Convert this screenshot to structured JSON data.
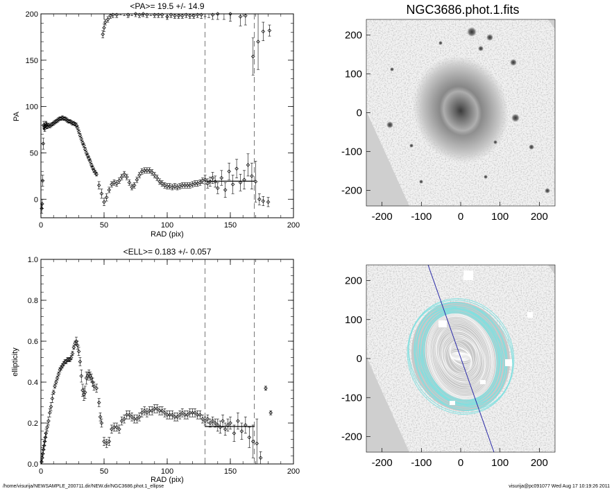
{
  "footer": {
    "path": "/home/visurija/NEWSAMPLE_200711.dir/NEW.dir/NGC3686.phot.1_ellipse",
    "stamp": "visurija@pc091077  Wed Aug 17 10:19:26 2011"
  },
  "chart_data": [
    {
      "id": "pa",
      "type": "scatter",
      "title": "<PA>=  19.5 +/-  14.9",
      "xlabel": "RAD (pix)",
      "ylabel": "PA",
      "xlim": [
        0,
        200
      ],
      "ylim": [
        -20,
        200
      ],
      "xticks": [
        0,
        50,
        100,
        150,
        200
      ],
      "yticks": [
        0,
        50,
        100,
        150,
        200
      ],
      "grid": false,
      "vlines": [
        130,
        169
      ],
      "mean_line": {
        "x": [
          130,
          169
        ],
        "y": 19.5
      },
      "points": [
        [
          0.6,
          -10,
          5
        ],
        [
          1.0,
          -5,
          5
        ],
        [
          1.4,
          20,
          6
        ],
        [
          1.8,
          60,
          6
        ],
        [
          2.2,
          80,
          4
        ],
        [
          2.6,
          78,
          3
        ],
        [
          3.0,
          76,
          3
        ],
        [
          3.5,
          79,
          2
        ],
        [
          4.0,
          82,
          2
        ],
        [
          4.5,
          80,
          2
        ],
        [
          5,
          78,
          2
        ],
        [
          6,
          80,
          2
        ],
        [
          7,
          79,
          2
        ],
        [
          8,
          80,
          2
        ],
        [
          9,
          81,
          2
        ],
        [
          10,
          82,
          2
        ],
        [
          11,
          83,
          2
        ],
        [
          12,
          84,
          2
        ],
        [
          13,
          85,
          2
        ],
        [
          14,
          86,
          2
        ],
        [
          15,
          87,
          2
        ],
        [
          16,
          87,
          2
        ],
        [
          17,
          88,
          2
        ],
        [
          18,
          87,
          2
        ],
        [
          19,
          87,
          2
        ],
        [
          20,
          86,
          2
        ],
        [
          21,
          85,
          2
        ],
        [
          22,
          84,
          2
        ],
        [
          23,
          84,
          2
        ],
        [
          24,
          83,
          2
        ],
        [
          25,
          82,
          2
        ],
        [
          26,
          82,
          2
        ],
        [
          27,
          81,
          2
        ],
        [
          28,
          80,
          2
        ],
        [
          29,
          77,
          2
        ],
        [
          30,
          73,
          2
        ],
        [
          31,
          69,
          2
        ],
        [
          32,
          65,
          2
        ],
        [
          33,
          61,
          2
        ],
        [
          34,
          58,
          2
        ],
        [
          35,
          54,
          2
        ],
        [
          36,
          50,
          2
        ],
        [
          37,
          47,
          2
        ],
        [
          38,
          44,
          2
        ],
        [
          39,
          41,
          2
        ],
        [
          40,
          37,
          2
        ],
        [
          41,
          34,
          2
        ],
        [
          42,
          31,
          2
        ],
        [
          43,
          29,
          2
        ],
        [
          44,
          27,
          2
        ],
        [
          46,
          15,
          4
        ],
        [
          48,
          6,
          5
        ],
        [
          50,
          -3,
          4
        ],
        [
          52,
          2,
          4
        ],
        [
          54,
          10,
          3
        ],
        [
          56,
          16,
          3
        ],
        [
          58,
          18,
          3
        ],
        [
          60,
          17,
          3
        ],
        [
          62,
          20,
          3
        ],
        [
          64,
          24,
          3
        ],
        [
          66,
          27,
          3
        ],
        [
          68,
          24,
          3
        ],
        [
          70,
          18,
          3
        ],
        [
          72,
          13,
          3
        ],
        [
          74,
          15,
          3
        ],
        [
          76,
          21,
          3
        ],
        [
          78,
          26,
          3
        ],
        [
          80,
          30,
          3
        ],
        [
          82,
          31,
          3
        ],
        [
          84,
          31,
          3
        ],
        [
          86,
          31,
          3
        ],
        [
          88,
          29,
          3
        ],
        [
          90,
          26,
          3
        ],
        [
          92,
          23,
          3
        ],
        [
          94,
          19,
          3
        ],
        [
          96,
          17,
          3
        ],
        [
          98,
          15,
          3
        ],
        [
          100,
          14,
          3
        ],
        [
          102,
          14,
          3
        ],
        [
          104,
          13,
          3
        ],
        [
          106,
          14,
          3
        ],
        [
          108,
          13,
          3
        ],
        [
          110,
          14,
          3
        ],
        [
          112,
          15,
          3
        ],
        [
          114,
          15,
          3
        ],
        [
          116,
          15,
          3
        ],
        [
          118,
          15,
          3
        ],
        [
          120,
          16,
          3
        ],
        [
          122,
          17,
          3
        ],
        [
          124,
          17,
          3
        ],
        [
          126,
          18,
          3
        ],
        [
          128,
          20,
          3
        ],
        [
          130,
          21,
          5
        ],
        [
          132,
          17,
          5
        ],
        [
          134,
          19,
          5
        ],
        [
          136,
          23,
          6
        ],
        [
          138,
          19,
          6
        ],
        [
          140,
          12,
          6
        ],
        [
          143,
          23,
          8
        ],
        [
          146,
          10,
          8
        ],
        [
          149,
          30,
          9
        ],
        [
          152,
          16,
          10
        ],
        [
          155,
          33,
          10
        ],
        [
          158,
          18,
          9
        ],
        [
          161,
          21,
          10
        ],
        [
          164,
          37,
          12
        ],
        [
          167,
          25,
          14
        ],
        [
          170,
          19,
          22
        ],
        [
          173,
          0,
          6
        ],
        [
          176,
          -2,
          5
        ],
        [
          180,
          -3,
          5
        ],
        [
          49,
          178,
          4
        ],
        [
          50,
          185,
          4
        ],
        [
          51,
          191,
          3
        ],
        [
          53,
          194,
          3
        ],
        [
          55,
          198,
          3
        ],
        [
          57,
          199,
          3
        ],
        [
          60,
          199,
          3
        ],
        [
          63,
          202,
          3
        ],
        [
          66,
          201,
          3
        ],
        [
          69,
          199,
          3
        ],
        [
          72,
          201,
          3
        ],
        [
          75,
          200,
          3
        ],
        [
          78,
          199,
          3
        ],
        [
          81,
          200,
          3
        ],
        [
          84,
          199,
          3
        ],
        [
          87,
          201,
          3
        ],
        [
          90,
          199,
          3
        ],
        [
          93,
          199,
          3
        ],
        [
          96,
          199,
          3
        ],
        [
          100,
          197,
          3
        ],
        [
          103,
          199,
          3
        ],
        [
          106,
          198,
          3
        ],
        [
          109,
          198,
          3
        ],
        [
          112,
          198,
          3
        ],
        [
          115,
          199,
          3
        ],
        [
          118,
          198,
          3
        ],
        [
          121,
          198,
          3
        ],
        [
          124,
          199,
          3
        ],
        [
          127,
          199,
          4
        ],
        [
          130,
          201,
          4
        ],
        [
          133,
          201,
          5
        ],
        [
          136,
          199,
          5
        ],
        [
          140,
          200,
          6
        ],
        [
          145,
          201,
          7
        ],
        [
          150,
          200,
          8
        ],
        [
          158,
          197,
          10
        ],
        [
          162,
          198,
          10
        ],
        [
          168,
          154,
          20
        ],
        [
          172,
          170,
          30
        ],
        [
          176,
          181,
          10
        ],
        [
          181,
          182,
          6
        ]
      ]
    },
    {
      "id": "ell",
      "type": "scatter",
      "title": "<ELL>= 0.183 +/-  0.057",
      "xlabel": "RAD (pix)",
      "ylabel": "ellipticity",
      "xlim": [
        0,
        200
      ],
      "ylim": [
        0,
        1
      ],
      "xticks": [
        0,
        50,
        100,
        150,
        200
      ],
      "yticks": [
        0,
        0.2,
        0.4,
        0.6,
        0.8,
        1.0
      ],
      "ytick_labels": [
        "0.0",
        "0.2",
        "0.4",
        "0.6",
        "0.8",
        "1.0"
      ],
      "grid": false,
      "vlines": [
        130,
        169
      ],
      "mean_line": {
        "x": [
          130,
          169
        ],
        "y": 0.183
      },
      "points": [
        [
          0.5,
          0.01,
          0.01
        ],
        [
          1.0,
          0.03,
          0.02
        ],
        [
          1.5,
          0.05,
          0.02
        ],
        [
          2.0,
          0.07,
          0.02
        ],
        [
          2.5,
          0.09,
          0.02
        ],
        [
          3.0,
          0.11,
          0.02
        ],
        [
          3.5,
          0.13,
          0.02
        ],
        [
          4,
          0.15,
          0.02
        ],
        [
          5,
          0.18,
          0.02
        ],
        [
          6,
          0.21,
          0.02
        ],
        [
          7,
          0.25,
          0.02
        ],
        [
          8,
          0.28,
          0.02
        ],
        [
          9,
          0.32,
          0.02
        ],
        [
          10,
          0.35,
          0.01
        ],
        [
          11,
          0.38,
          0.01
        ],
        [
          12,
          0.4,
          0.01
        ],
        [
          13,
          0.42,
          0.01
        ],
        [
          14,
          0.44,
          0.01
        ],
        [
          15,
          0.46,
          0.01
        ],
        [
          16,
          0.47,
          0.01
        ],
        [
          17,
          0.48,
          0.01
        ],
        [
          18,
          0.49,
          0.01
        ],
        [
          19,
          0.5,
          0.01
        ],
        [
          20,
          0.5,
          0.01
        ],
        [
          21,
          0.51,
          0.01
        ],
        [
          22,
          0.51,
          0.01
        ],
        [
          23,
          0.51,
          0.01
        ],
        [
          24,
          0.52,
          0.01
        ],
        [
          25,
          0.54,
          0.01
        ],
        [
          26,
          0.57,
          0.01
        ],
        [
          27,
          0.59,
          0.01
        ],
        [
          28,
          0.6,
          0.02
        ],
        [
          29,
          0.58,
          0.02
        ],
        [
          30,
          0.55,
          0.02
        ],
        [
          31,
          0.5,
          0.02
        ],
        [
          32,
          0.43,
          0.03
        ],
        [
          33,
          0.36,
          0.03
        ],
        [
          34,
          0.34,
          0.03
        ],
        [
          35,
          0.35,
          0.03
        ],
        [
          36,
          0.42,
          0.03
        ],
        [
          37,
          0.43,
          0.02
        ],
        [
          38,
          0.44,
          0.02
        ],
        [
          39,
          0.43,
          0.02
        ],
        [
          40,
          0.42,
          0.02
        ],
        [
          41,
          0.4,
          0.02
        ],
        [
          42,
          0.38,
          0.02
        ],
        [
          44,
          0.37,
          0.02
        ],
        [
          46,
          0.3,
          0.02
        ],
        [
          47,
          0.23,
          0.02
        ],
        [
          48,
          0.2,
          0.02
        ],
        [
          50,
          0.11,
          0.02
        ],
        [
          52,
          0.1,
          0.02
        ],
        [
          54,
          0.11,
          0.02
        ],
        [
          56,
          0.17,
          0.02
        ],
        [
          58,
          0.18,
          0.02
        ],
        [
          60,
          0.18,
          0.02
        ],
        [
          62,
          0.17,
          0.02
        ],
        [
          64,
          0.21,
          0.02
        ],
        [
          66,
          0.22,
          0.02
        ],
        [
          68,
          0.24,
          0.02
        ],
        [
          70,
          0.24,
          0.02
        ],
        [
          72,
          0.23,
          0.02
        ],
        [
          74,
          0.22,
          0.02
        ],
        [
          76,
          0.22,
          0.02
        ],
        [
          78,
          0.23,
          0.02
        ],
        [
          80,
          0.25,
          0.02
        ],
        [
          82,
          0.26,
          0.02
        ],
        [
          84,
          0.25,
          0.02
        ],
        [
          86,
          0.26,
          0.02
        ],
        [
          88,
          0.26,
          0.02
        ],
        [
          90,
          0.27,
          0.02
        ],
        [
          92,
          0.27,
          0.02
        ],
        [
          94,
          0.26,
          0.02
        ],
        [
          96,
          0.26,
          0.02
        ],
        [
          98,
          0.25,
          0.02
        ],
        [
          100,
          0.24,
          0.02
        ],
        [
          102,
          0.24,
          0.02
        ],
        [
          104,
          0.24,
          0.02
        ],
        [
          106,
          0.23,
          0.02
        ],
        [
          108,
          0.23,
          0.02
        ],
        [
          110,
          0.24,
          0.02
        ],
        [
          112,
          0.25,
          0.02
        ],
        [
          114,
          0.24,
          0.02
        ],
        [
          116,
          0.24,
          0.02
        ],
        [
          118,
          0.25,
          0.02
        ],
        [
          120,
          0.25,
          0.02
        ],
        [
          122,
          0.25,
          0.02
        ],
        [
          124,
          0.24,
          0.02
        ],
        [
          126,
          0.24,
          0.02
        ],
        [
          128,
          0.22,
          0.02
        ],
        [
          130,
          0.21,
          0.02
        ],
        [
          132,
          0.22,
          0.02
        ],
        [
          134,
          0.2,
          0.02
        ],
        [
          136,
          0.21,
          0.02
        ],
        [
          138,
          0.2,
          0.02
        ],
        [
          140,
          0.19,
          0.03
        ],
        [
          142,
          0.18,
          0.03
        ],
        [
          144,
          0.21,
          0.03
        ],
        [
          146,
          0.17,
          0.03
        ],
        [
          148,
          0.19,
          0.03
        ],
        [
          150,
          0.2,
          0.03
        ],
        [
          153,
          0.15,
          0.04
        ],
        [
          156,
          0.21,
          0.04
        ],
        [
          159,
          0.16,
          0.04
        ],
        [
          162,
          0.19,
          0.04
        ],
        [
          165,
          0.13,
          0.05
        ],
        [
          168,
          0.11,
          0.08
        ],
        [
          171,
          0.1,
          0.12
        ],
        [
          174,
          0.03,
          0.03
        ],
        [
          178,
          0.37,
          0.01
        ],
        [
          182,
          0.25,
          0.01
        ]
      ]
    },
    {
      "id": "img1",
      "type": "heatmap",
      "title": "NGC3686.phot.1.fits",
      "xlim": [
        -240,
        240
      ],
      "ylim": [
        -240,
        240
      ],
      "xticks": [
        -200,
        -100,
        0,
        100,
        200
      ],
      "yticks": [
        -200,
        -100,
        0,
        100,
        200
      ]
    },
    {
      "id": "img2",
      "type": "heatmap",
      "title": "",
      "xlim": [
        -240,
        240
      ],
      "ylim": [
        -240,
        240
      ],
      "xticks": [
        -200,
        -100,
        0,
        100,
        200
      ],
      "yticks": [
        -200,
        -100,
        0,
        100,
        200
      ],
      "colors": {
        "outer_isophotes": "#7fe0e0",
        "inner_isophotes": "#ffffff",
        "major_axis": "#2a2aa8"
      }
    }
  ]
}
